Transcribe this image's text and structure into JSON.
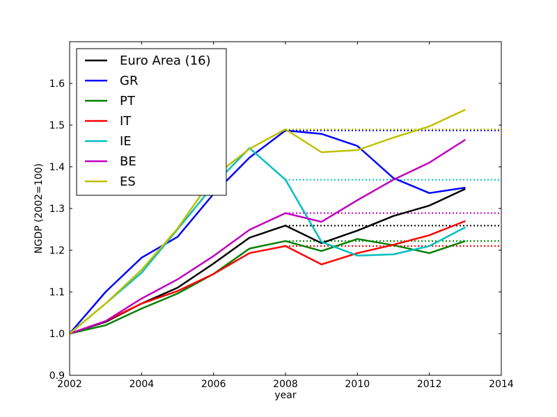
{
  "chart_data": {
    "type": "line",
    "title": "",
    "xlabel": "year",
    "ylabel": "NGDP (2002=100)",
    "xlim": [
      2002,
      2014
    ],
    "ylim": [
      0.9,
      1.7
    ],
    "xticks": [
      2002,
      2004,
      2006,
      2008,
      2010,
      2012,
      2014
    ],
    "yticks": [
      0.9,
      1.0,
      1.1,
      1.2,
      1.3,
      1.4,
      1.5,
      1.6
    ],
    "xtick_labels": [
      "2002",
      "2004",
      "2006",
      "2008",
      "2010",
      "2012",
      "2014"
    ],
    "ytick_labels": [
      "0.9",
      "1.0",
      "1.1",
      "1.2",
      "1.3",
      "1.4",
      "1.5",
      "1.6"
    ],
    "grid": false,
    "legend_position": "top-left",
    "x": [
      2002,
      2003,
      2004,
      2005,
      2006,
      2007,
      2008,
      2009,
      2010,
      2011,
      2012,
      2013
    ],
    "series": [
      {
        "name": "Euro Area (16)",
        "color": "#000000",
        "values": [
          1.0,
          1.028,
          1.072,
          1.11,
          1.168,
          1.23,
          1.259,
          1.217,
          1.247,
          1.282,
          1.307,
          1.347
        ],
        "reference_level": 1.259
      },
      {
        "name": "GR",
        "color": "#0000ff",
        "values": [
          1.0,
          1.1,
          1.182,
          1.232,
          1.335,
          1.422,
          1.487,
          1.479,
          1.45,
          1.373,
          1.337,
          1.35
        ],
        "reference_level": 1.487
      },
      {
        "name": "PT",
        "color": "#008000",
        "values": [
          1.0,
          1.02,
          1.06,
          1.096,
          1.143,
          1.204,
          1.222,
          1.198,
          1.227,
          1.212,
          1.193,
          1.222
        ],
        "reference_level": 1.222
      },
      {
        "name": "IT",
        "color": "#ff0000",
        "values": [
          1.0,
          1.03,
          1.072,
          1.102,
          1.143,
          1.193,
          1.21,
          1.166,
          1.193,
          1.213,
          1.236,
          1.27
        ],
        "reference_level": 1.21
      },
      {
        "name": "IE",
        "color": "#00bfbf",
        "values": [
          1.0,
          1.072,
          1.146,
          1.25,
          1.356,
          1.445,
          1.369,
          1.22,
          1.187,
          1.19,
          1.21,
          1.255
        ],
        "reference_level": 1.369
      },
      {
        "name": "BE",
        "color": "#bf00bf",
        "values": [
          1.0,
          1.03,
          1.084,
          1.13,
          1.186,
          1.249,
          1.289,
          1.268,
          1.32,
          1.369,
          1.41,
          1.465
        ],
        "reference_level": 1.289
      },
      {
        "name": "ES",
        "color": "#bfbf00",
        "values": [
          1.0,
          1.072,
          1.153,
          1.252,
          1.376,
          1.443,
          1.49,
          1.435,
          1.44,
          1.47,
          1.497,
          1.537
        ],
        "reference_level": 1.49
      }
    ],
    "reference_line_style": "dotted",
    "reference_from_x": 2008
  }
}
